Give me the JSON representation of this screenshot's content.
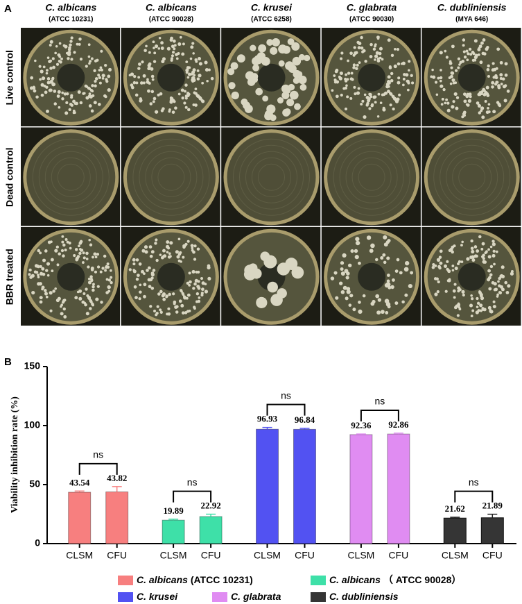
{
  "panel_a": {
    "label": "A",
    "columns": [
      {
        "species": "C. albicans",
        "strain": "(ATCC 10231)"
      },
      {
        "species": "C. albicans",
        "strain": "(ATCC 90028)"
      },
      {
        "species": "C. krusei",
        "strain": "(ATCC 6258)"
      },
      {
        "species": "C. glabrata",
        "strain": "(ATCC 90030)"
      },
      {
        "species": "C. dubliniensis",
        "strain": "(MYA 646)"
      }
    ],
    "rows": [
      "Live control",
      "Dead control",
      "BBR treated"
    ]
  },
  "chart_data": {
    "type": "bar",
    "panel_label": "B",
    "y_label": "Viability inhibition rate (%)",
    "categories": [
      "CLSM",
      "CFU"
    ],
    "ylim": [
      0,
      150
    ],
    "yticks": [
      0,
      50,
      100,
      150
    ],
    "series": [
      {
        "name": "C. albicans",
        "strain": "(ATCC 10231)",
        "color": "#f77f7f",
        "values": [
          43.54,
          43.82
        ],
        "errors": [
          1,
          4.5
        ],
        "annotation": "ns"
      },
      {
        "name": "C. albicans",
        "strain": "（ ATCC 90028）",
        "color": "#3ee0a8",
        "values": [
          19.89,
          22.92
        ],
        "errors": [
          0.8,
          2
        ],
        "annotation": "ns"
      },
      {
        "name": "C. krusei",
        "color": "#5252f2",
        "values": [
          96.93,
          96.84
        ],
        "errors": [
          1.5,
          0.8
        ],
        "annotation": "ns"
      },
      {
        "name": "C. glabrata",
        "color": "#e08cf2",
        "values": [
          92.36,
          92.86
        ],
        "errors": [
          0.5,
          0.7
        ],
        "annotation": "ns"
      },
      {
        "name": "C. dubliniensis",
        "color": "#353535",
        "values": [
          21.62,
          21.89
        ],
        "errors": [
          0.7,
          3
        ],
        "annotation": "ns"
      }
    ]
  }
}
